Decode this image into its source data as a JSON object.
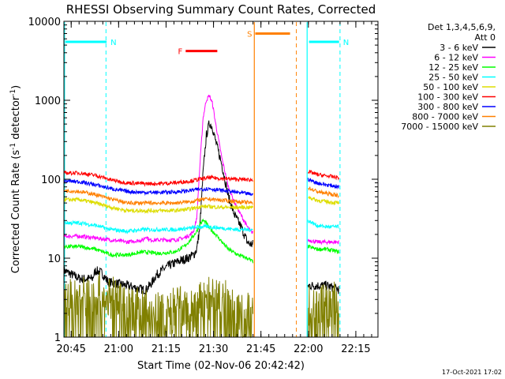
{
  "chart_data": {
    "type": "line",
    "title": "RHESSI Observing Summary Count Rates, Corrected",
    "xlabel": "Start Time (02-Nov-06 20:42:42)",
    "ylabel": "Corrected Count Rate (s⁻¹ detector⁻¹)",
    "ylabel_main": "Corrected Count Rate (s",
    "ylabel_sup1": "-1",
    "ylabel_mid": " detector",
    "ylabel_sup2": "-1",
    "ylabel_end": ")",
    "x_range": [
      "20:42:42",
      "22:22:00"
    ],
    "x_range_minutes": [
      0,
      99.3
    ],
    "ylim": [
      1,
      10000
    ],
    "yscale": "log",
    "x_ticks": [
      {
        "label": "20:45",
        "min": 2.3
      },
      {
        "label": "21:00",
        "min": 17.3
      },
      {
        "label": "21:15",
        "min": 32.3
      },
      {
        "label": "21:30",
        "min": 47.3
      },
      {
        "label": "21:45",
        "min": 62.3
      },
      {
        "label": "22:00",
        "min": 77.3
      },
      {
        "label": "22:15",
        "min": 92.3
      }
    ],
    "y_ticks": [
      {
        "label": "1",
        "v": 1
      },
      {
        "label": "10",
        "v": 10
      },
      {
        "label": "100",
        "v": 100
      },
      {
        "label": "1000",
        "v": 1000
      },
      {
        "label": "10000",
        "v": 10000
      }
    ],
    "legend_header": [
      "Det 1,3,4,5,6,9,",
      "Att 0"
    ],
    "legend_position": "right",
    "series": [
      {
        "name": "3 - 6 keV",
        "color": "#000000",
        "points": [
          [
            0,
            7
          ],
          [
            5,
            5.5
          ],
          [
            9,
            5.5
          ],
          [
            10,
            7
          ],
          [
            12,
            6.5
          ],
          [
            14,
            5
          ],
          [
            20,
            4.5
          ],
          [
            25,
            4
          ],
          [
            26,
            4
          ],
          [
            28,
            5
          ],
          [
            29,
            6
          ],
          [
            31,
            7
          ],
          [
            33,
            8
          ],
          [
            36,
            9
          ],
          [
            39,
            10
          ],
          [
            41,
            11
          ],
          [
            42,
            13
          ],
          [
            43,
            25
          ],
          [
            44,
            120
          ],
          [
            45,
            350
          ],
          [
            46,
            520
          ],
          [
            47,
            450
          ],
          [
            48,
            300
          ],
          [
            50,
            150
          ],
          [
            52,
            60
          ],
          [
            54,
            35
          ],
          [
            56,
            25
          ],
          [
            57,
            20
          ],
          [
            58,
            16
          ],
          [
            59,
            15
          ],
          [
            59.8,
            15
          ]
        ],
        "segment2": [
          [
            77.2,
            4.5
          ],
          [
            78,
            4.5
          ],
          [
            83,
            4.5
          ],
          [
            87,
            4
          ]
        ]
      },
      {
        "name": "6 - 12 keV",
        "color": "#ff00ff",
        "points": [
          [
            0,
            19
          ],
          [
            5,
            19
          ],
          [
            10,
            18
          ],
          [
            20,
            16
          ],
          [
            25,
            17
          ],
          [
            26,
            19
          ],
          [
            27,
            17
          ],
          [
            30,
            17
          ],
          [
            35,
            17
          ],
          [
            38,
            18
          ],
          [
            40,
            20
          ],
          [
            41,
            22
          ],
          [
            42,
            32
          ],
          [
            43,
            150
          ],
          [
            44,
            600
          ],
          [
            45,
            1000
          ],
          [
            46,
            1150
          ],
          [
            47,
            900
          ],
          [
            48,
            500
          ],
          [
            50,
            180
          ],
          [
            52,
            80
          ],
          [
            54,
            50
          ],
          [
            56,
            35
          ],
          [
            58,
            25
          ],
          [
            59,
            22
          ],
          [
            59.8,
            21
          ]
        ],
        "segment2": [
          [
            77.2,
            17
          ],
          [
            80,
            16
          ],
          [
            87,
            16
          ]
        ]
      },
      {
        "name": "12 - 25 keV",
        "color": "#00ff00",
        "points": [
          [
            0,
            14
          ],
          [
            5,
            14
          ],
          [
            10,
            13
          ],
          [
            15,
            11
          ],
          [
            20,
            11
          ],
          [
            25,
            12
          ],
          [
            30,
            11.5
          ],
          [
            35,
            12
          ],
          [
            38,
            14
          ],
          [
            40,
            17
          ],
          [
            42,
            22
          ],
          [
            43,
            27
          ],
          [
            44,
            30
          ],
          [
            45,
            28
          ],
          [
            46,
            24
          ],
          [
            48,
            20
          ],
          [
            50,
            16
          ],
          [
            52,
            13
          ],
          [
            55,
            11
          ],
          [
            58,
            10
          ],
          [
            59.8,
            9
          ]
        ],
        "segment2": [
          [
            77.2,
            14
          ],
          [
            80,
            13
          ],
          [
            83,
            13
          ],
          [
            87,
            12
          ]
        ]
      },
      {
        "name": "25 - 50 keV",
        "color": "#00ffff",
        "points": [
          [
            0,
            28
          ],
          [
            5,
            28
          ],
          [
            10,
            26
          ],
          [
            15,
            23
          ],
          [
            20,
            22
          ],
          [
            25,
            23
          ],
          [
            30,
            23
          ],
          [
            35,
            23
          ],
          [
            40,
            24
          ],
          [
            43,
            25
          ],
          [
            46,
            25
          ],
          [
            50,
            24
          ],
          [
            55,
            23
          ],
          [
            59.8,
            23
          ]
        ],
        "segment2": [
          [
            77.2,
            30
          ],
          [
            80,
            26
          ],
          [
            83,
            25
          ],
          [
            87,
            25
          ]
        ]
      },
      {
        "name": "50 - 100 keV",
        "color": "#dddd00",
        "points": [
          [
            0,
            55
          ],
          [
            5,
            55
          ],
          [
            10,
            50
          ],
          [
            15,
            44
          ],
          [
            20,
            40
          ],
          [
            25,
            40
          ],
          [
            30,
            40
          ],
          [
            35,
            40
          ],
          [
            40,
            42
          ],
          [
            43,
            45
          ],
          [
            46,
            45
          ],
          [
            50,
            44
          ],
          [
            55,
            44
          ],
          [
            59.8,
            44
          ]
        ],
        "segment2": [
          [
            77.2,
            60
          ],
          [
            80,
            54
          ],
          [
            83,
            52
          ],
          [
            87,
            50
          ]
        ]
      },
      {
        "name": "100 - 300 keV",
        "color": "#ff0000",
        "points": [
          [
            0,
            120
          ],
          [
            5,
            120
          ],
          [
            10,
            112
          ],
          [
            15,
            98
          ],
          [
            20,
            90
          ],
          [
            25,
            88
          ],
          [
            30,
            88
          ],
          [
            35,
            90
          ],
          [
            40,
            95
          ],
          [
            43,
            100
          ],
          [
            46,
            105
          ],
          [
            50,
            102
          ],
          [
            55,
            100
          ],
          [
            59.8,
            98
          ]
        ],
        "segment2": [
          [
            77.2,
            125
          ],
          [
            80,
            115
          ],
          [
            83,
            110
          ],
          [
            87,
            105
          ]
        ]
      },
      {
        "name": "300 - 800 keV",
        "color": "#0000ff",
        "points": [
          [
            0,
            95
          ],
          [
            5,
            93
          ],
          [
            10,
            85
          ],
          [
            15,
            76
          ],
          [
            20,
            70
          ],
          [
            25,
            68
          ],
          [
            30,
            68
          ],
          [
            35,
            69
          ],
          [
            40,
            72
          ],
          [
            43,
            75
          ],
          [
            46,
            76
          ],
          [
            50,
            72
          ],
          [
            55,
            68
          ],
          [
            59.8,
            64
          ]
        ],
        "segment2": [
          [
            77.2,
            100
          ],
          [
            80,
            90
          ],
          [
            83,
            85
          ],
          [
            87,
            80
          ]
        ]
      },
      {
        "name": "800 - 7000 keV",
        "color": "#ff8000",
        "points": [
          [
            0,
            72
          ],
          [
            5,
            70
          ],
          [
            10,
            64
          ],
          [
            15,
            56
          ],
          [
            20,
            50
          ],
          [
            25,
            50
          ],
          [
            30,
            50
          ],
          [
            35,
            50
          ],
          [
            40,
            52
          ],
          [
            43,
            55
          ],
          [
            46,
            56
          ],
          [
            50,
            54
          ],
          [
            55,
            52
          ],
          [
            59.8,
            50
          ]
        ],
        "segment2": [
          [
            77.2,
            78
          ],
          [
            80,
            70
          ],
          [
            83,
            66
          ],
          [
            87,
            62
          ]
        ]
      },
      {
        "name": "7000 - 15000 keV",
        "color": "#808000",
        "points": [
          [
            0,
            2.8
          ],
          [
            5,
            3
          ],
          [
            10,
            3.5
          ],
          [
            15,
            3
          ],
          [
            20,
            2.5
          ],
          [
            25,
            2
          ],
          [
            30,
            2
          ],
          [
            33,
            1.8
          ],
          [
            36,
            2.5
          ],
          [
            40,
            2
          ],
          [
            43,
            2.5
          ],
          [
            46,
            3
          ],
          [
            50,
            3.2
          ],
          [
            52,
            2.5
          ],
          [
            55,
            2
          ],
          [
            58,
            2
          ],
          [
            59.8,
            1.8
          ]
        ],
        "segment2": [
          [
            77.2,
            2.5
          ],
          [
            80,
            2.8
          ],
          [
            83,
            2.5
          ],
          [
            87,
            2.6
          ]
        ]
      }
    ],
    "annotations": [
      {
        "label": "N",
        "color": "#00ffff",
        "line_min": [
          0.5,
          13.5
        ],
        "level": 5500,
        "dashed_at": 13.3,
        "solid_at": 0.2
      },
      {
        "label": "N",
        "color": "#00ffff",
        "line_min": [
          77.5,
          87
        ],
        "level": 5500,
        "dashed_at": 87.3,
        "solid_at": 76.9
      },
      {
        "label": "F",
        "color": "#ff0000",
        "line_min": [
          38.5,
          48.5
        ],
        "level": 4200
      },
      {
        "label": "S",
        "color": "#ff8000",
        "line_min": [
          60.5,
          71.5
        ],
        "level": 7000,
        "solid_at": 60.2,
        "dashed_at": 73.5
      }
    ],
    "grid": false,
    "footer_date": "17-Oct-2021 17:02"
  }
}
